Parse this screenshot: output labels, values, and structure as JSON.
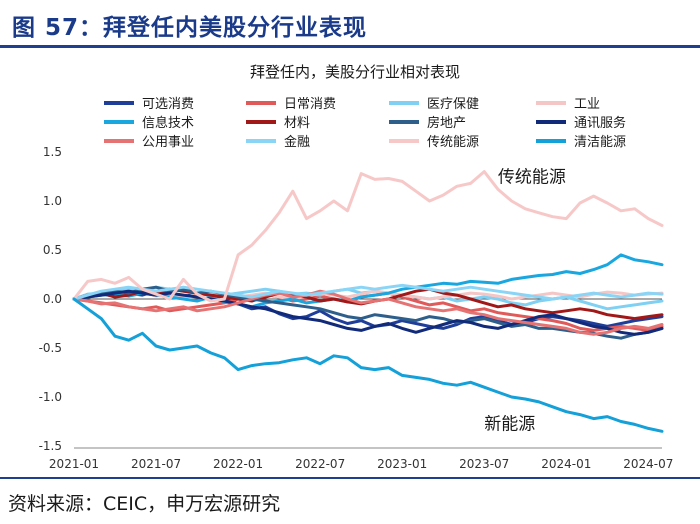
{
  "header": {
    "figure_title": "图 57：拜登任内美股分行业表现"
  },
  "footer": {
    "source": "资料来源：CEIC，申万宏源研究"
  },
  "chart_data": {
    "type": "line",
    "title": "拜登任内，美股分行业相对表现",
    "xlabel": "",
    "ylabel": "",
    "x": [
      "2021-01",
      "2021-02",
      "2021-03",
      "2021-04",
      "2021-05",
      "2021-06",
      "2021-07",
      "2021-08",
      "2021-09",
      "2021-10",
      "2021-11",
      "2021-12",
      "2022-01",
      "2022-02",
      "2022-03",
      "2022-04",
      "2022-05",
      "2022-06",
      "2022-07",
      "2022-08",
      "2022-09",
      "2022-10",
      "2022-11",
      "2022-12",
      "2023-01",
      "2023-02",
      "2023-03",
      "2023-04",
      "2023-05",
      "2023-06",
      "2023-07",
      "2023-08",
      "2023-09",
      "2023-10",
      "2023-11",
      "2023-12",
      "2024-01",
      "2024-02",
      "2024-03",
      "2024-04",
      "2024-05",
      "2024-06",
      "2024-07",
      "2024-08"
    ],
    "x_ticks": [
      "2021-01",
      "2021-07",
      "2022-01",
      "2022-07",
      "2023-01",
      "2023-07",
      "2024-01",
      "2024-07"
    ],
    "y_ticks": [
      1.5,
      1.0,
      0.5,
      0.0,
      -0.5,
      -1.0,
      -1.5
    ],
    "ylim": [
      -1.5,
      1.5
    ],
    "series": [
      {
        "name": "可选消费",
        "color": "#1f3e99",
        "values": [
          0,
          0.02,
          0.05,
          0.03,
          0.06,
          0.04,
          0.08,
          0.05,
          0.02,
          0.06,
          0.04,
          0.01,
          -0.05,
          -0.1,
          -0.08,
          -0.15,
          -0.2,
          -0.18,
          -0.12,
          -0.2,
          -0.25,
          -0.22,
          -0.28,
          -0.26,
          -0.22,
          -0.25,
          -0.28,
          -0.3,
          -0.26,
          -0.2,
          -0.18,
          -0.22,
          -0.26,
          -0.24,
          -0.2,
          -0.18,
          -0.2,
          -0.22,
          -0.25,
          -0.28,
          -0.25,
          -0.22,
          -0.2,
          -0.18
        ]
      },
      {
        "name": "日常消费",
        "color": "#e05a5a",
        "values": [
          0,
          -0.02,
          -0.04,
          -0.06,
          -0.08,
          -0.1,
          -0.08,
          -0.12,
          -0.1,
          -0.08,
          -0.06,
          -0.04,
          0.0,
          0.02,
          0.05,
          0.02,
          -0.02,
          0.0,
          0.03,
          0.0,
          -0.03,
          0.02,
          0.04,
          0.06,
          0.02,
          -0.02,
          -0.06,
          -0.04,
          -0.08,
          -0.12,
          -0.1,
          -0.14,
          -0.16,
          -0.18,
          -0.2,
          -0.22,
          -0.25,
          -0.3,
          -0.32,
          -0.3,
          -0.28,
          -0.3,
          -0.32,
          -0.28
        ]
      },
      {
        "name": "医疗保健",
        "color": "#7fd0f2",
        "values": [
          0,
          0.05,
          0.06,
          0.08,
          0.1,
          0.08,
          0.12,
          0.1,
          0.08,
          0.05,
          0.06,
          0.04,
          0.06,
          0.08,
          0.1,
          0.08,
          0.05,
          0.06,
          0.04,
          0.08,
          0.1,
          0.06,
          0.08,
          0.06,
          0.04,
          0.02,
          0.0,
          0.02,
          -0.02,
          0.0,
          0.02,
          0.0,
          -0.04,
          -0.06,
          -0.02,
          0.0,
          0.02,
          -0.02,
          -0.06,
          -0.1,
          -0.08,
          -0.06,
          -0.04,
          -0.02
        ]
      },
      {
        "name": "工业",
        "color": "#f5c6c6",
        "values": [
          0,
          0.02,
          0.04,
          0.06,
          0.05,
          0.07,
          0.03,
          0.05,
          0.02,
          0.04,
          0.06,
          0.05,
          0.02,
          0.04,
          0.06,
          0.02,
          0.0,
          0.03,
          0.06,
          0.04,
          0.02,
          0.05,
          0.08,
          0.06,
          0.04,
          0.02,
          0.0,
          0.02,
          0.04,
          0.06,
          0.05,
          0.03,
          0.0,
          0.02,
          0.04,
          0.06,
          0.04,
          0.02,
          0.05,
          0.07,
          0.06,
          0.04,
          0.05,
          0.06
        ]
      },
      {
        "name": "信息技术",
        "color": "#1aa7e0",
        "values": [
          0,
          0.02,
          0.04,
          0.05,
          0.03,
          0.06,
          0.04,
          0.02,
          0.0,
          -0.02,
          0.02,
          -0.03,
          -0.05,
          -0.08,
          -0.04,
          -0.02,
          0.0,
          -0.04,
          -0.02,
          0.0,
          -0.02,
          0.02,
          0.04,
          0.06,
          0.1,
          0.12,
          0.14,
          0.16,
          0.15,
          0.18,
          0.17,
          0.16,
          0.2,
          0.22,
          0.24,
          0.25,
          0.28,
          0.26,
          0.3,
          0.35,
          0.45,
          0.4,
          0.38,
          0.35
        ]
      },
      {
        "name": "材料",
        "color": "#a01818",
        "values": [
          0,
          0.04,
          0.06,
          0.02,
          0.04,
          0.08,
          0.05,
          0.1,
          0.08,
          0.06,
          0.04,
          0.02,
          0.0,
          -0.02,
          0.02,
          0.06,
          0.05,
          0.02,
          -0.02,
          0.0,
          -0.03,
          -0.05,
          -0.02,
          0.0,
          0.04,
          0.08,
          0.1,
          0.06,
          0.04,
          0.0,
          -0.04,
          -0.08,
          -0.06,
          -0.1,
          -0.12,
          -0.14,
          -0.12,
          -0.1,
          -0.12,
          -0.16,
          -0.18,
          -0.2,
          -0.18,
          -0.16
        ]
      },
      {
        "name": "房地产",
        "color": "#2e5f8a",
        "values": [
          0,
          0.02,
          0.05,
          0.08,
          0.06,
          0.1,
          0.12,
          0.08,
          0.1,
          0.06,
          0.08,
          0.05,
          0.02,
          0.0,
          -0.02,
          -0.04,
          -0.06,
          -0.08,
          -0.1,
          -0.14,
          -0.18,
          -0.2,
          -0.16,
          -0.18,
          -0.2,
          -0.22,
          -0.18,
          -0.2,
          -0.24,
          -0.22,
          -0.2,
          -0.24,
          -0.28,
          -0.26,
          -0.3,
          -0.3,
          -0.32,
          -0.34,
          -0.35,
          -0.38,
          -0.4,
          -0.36,
          -0.34,
          -0.3
        ]
      },
      {
        "name": "通讯服务",
        "color": "#112b7a",
        "values": [
          0,
          0.02,
          0.04,
          0.06,
          0.08,
          0.06,
          0.04,
          0.06,
          0.04,
          0.02,
          0.0,
          -0.02,
          -0.05,
          -0.08,
          -0.1,
          -0.14,
          -0.18,
          -0.2,
          -0.22,
          -0.26,
          -0.3,
          -0.32,
          -0.28,
          -0.25,
          -0.3,
          -0.34,
          -0.3,
          -0.26,
          -0.22,
          -0.24,
          -0.28,
          -0.3,
          -0.26,
          -0.22,
          -0.18,
          -0.16,
          -0.2,
          -0.24,
          -0.28,
          -0.3,
          -0.34,
          -0.36,
          -0.34,
          -0.3
        ]
      },
      {
        "name": "公用事业",
        "color": "#e57373",
        "values": [
          0,
          -0.02,
          -0.05,
          -0.04,
          -0.08,
          -0.1,
          -0.12,
          -0.1,
          -0.08,
          -0.12,
          -0.1,
          -0.08,
          -0.04,
          0.0,
          0.04,
          0.06,
          0.02,
          0.04,
          0.08,
          0.05,
          0.0,
          -0.04,
          -0.02,
          0.0,
          -0.04,
          -0.08,
          -0.1,
          -0.12,
          -0.1,
          -0.14,
          -0.16,
          -0.2,
          -0.22,
          -0.24,
          -0.26,
          -0.28,
          -0.3,
          -0.34,
          -0.36,
          -0.34,
          -0.3,
          -0.28,
          -0.3,
          -0.26
        ]
      },
      {
        "name": "金融",
        "color": "#8ad4f5",
        "values": [
          0,
          0.04,
          0.08,
          0.1,
          0.12,
          0.1,
          0.08,
          0.1,
          0.12,
          0.1,
          0.08,
          0.06,
          0.04,
          0.02,
          0.05,
          0.08,
          0.06,
          0.04,
          0.06,
          0.08,
          0.1,
          0.12,
          0.1,
          0.12,
          0.14,
          0.12,
          0.1,
          0.08,
          0.1,
          0.12,
          0.1,
          0.08,
          0.06,
          0.04,
          0.02,
          0.0,
          0.02,
          0.04,
          0.06,
          0.04,
          0.02,
          0.04,
          0.06,
          0.05
        ]
      },
      {
        "name": "传统能源",
        "color": "#f7c8c8",
        "values": [
          0,
          0.18,
          0.2,
          0.16,
          0.22,
          0.1,
          0.05,
          0.0,
          0.2,
          0.05,
          -0.02,
          0.0,
          0.45,
          0.55,
          0.7,
          0.88,
          1.1,
          0.82,
          0.9,
          1.0,
          0.9,
          1.28,
          1.22,
          1.23,
          1.2,
          1.1,
          1.0,
          1.06,
          1.15,
          1.18,
          1.3,
          1.12,
          1.0,
          0.92,
          0.88,
          0.84,
          0.82,
          0.98,
          1.05,
          0.98,
          0.9,
          0.92,
          0.82,
          0.75
        ]
      },
      {
        "name": "清洁能源",
        "color": "#14a0d8",
        "values": [
          0,
          -0.1,
          -0.2,
          -0.38,
          -0.42,
          -0.35,
          -0.48,
          -0.52,
          -0.5,
          -0.48,
          -0.55,
          -0.6,
          -0.72,
          -0.68,
          -0.66,
          -0.65,
          -0.62,
          -0.6,
          -0.66,
          -0.58,
          -0.6,
          -0.7,
          -0.72,
          -0.7,
          -0.78,
          -0.8,
          -0.82,
          -0.86,
          -0.88,
          -0.85,
          -0.9,
          -0.95,
          -1.0,
          -1.02,
          -1.05,
          -1.1,
          -1.15,
          -1.18,
          -1.22,
          -1.2,
          -1.25,
          -1.28,
          -1.32,
          -1.35
        ]
      }
    ],
    "annotations": [
      {
        "text": "传统能源",
        "x": "2023-08",
        "y": 1.25
      },
      {
        "text": "新能源",
        "x": "2023-07",
        "y": -1.27
      }
    ]
  }
}
